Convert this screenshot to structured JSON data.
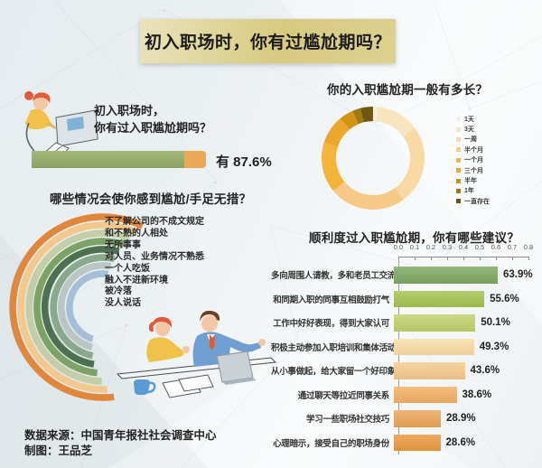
{
  "banner": {
    "title": "初入职场时，你有过尴尬期吗？"
  },
  "intro": {
    "question_line1": "初入职场时，",
    "question_line2": "你有过入职尴尬期吗？",
    "answer_text": "有 87.6%",
    "answer_value_pct": 87.6,
    "bar_fill_color": "#93ab64",
    "bar_rest_color": "#eaa757"
  },
  "footer": {
    "source": "数据来源：中国青年报社社会调查中心",
    "credit": "制图：王品芝"
  },
  "chart_data": [
    {
      "id": "awkward_situations",
      "type": "radial-bar",
      "title": "哪些情况会使你感到尴尬/手足无措？",
      "categories": [
        "不了解公司的不成文规定",
        "和不熟的人相处",
        "无所事事",
        "对人员、业务情况不熟悉",
        "一个人吃饭",
        "融入不进新环境",
        "被冷落",
        "没人说话"
      ],
      "colors": [
        "#e0873c",
        "#f2c88d",
        "#c3cea6",
        "#7ca266",
        "#4e7150",
        "#8aa88c",
        "#b9c6c4",
        "#a5bfd8"
      ],
      "sweep_deg": [
        187,
        183,
        179,
        175,
        171,
        168,
        165,
        162
      ],
      "start_deg": [
        -26,
        -23.5,
        -21,
        -18.5,
        -16,
        -13.5,
        -11,
        -8.5
      ]
    },
    {
      "id": "duration",
      "type": "pie",
      "title": "你的入职尴尬期一般有多长？",
      "categories": [
        "1天",
        "3天",
        "一周",
        "半个月",
        "一个月",
        "三个月",
        "半年",
        "1年",
        "一直存在"
      ],
      "values": [
        1.3,
        13.7,
        25,
        24,
        16,
        9,
        4.5,
        2.5,
        4
      ],
      "colors": [
        "#f5efdd",
        "#f9e4c0",
        "#f8d9a6",
        "#f6c987",
        "#f4b43a",
        "#e9a72e",
        "#d3920f",
        "#9e7a10",
        "#6e5614"
      ],
      "legend_position": "right"
    },
    {
      "id": "suggestions",
      "type": "bar",
      "title": "顺利度过入职尴尬期，你有哪些建议？",
      "categories": [
        "多向周围人请教，多和老员工交流",
        "和同期入职的同事互相鼓励打气",
        "工作中好好表现，得到大家认可",
        "积极主动参加入职培训和集体活动",
        "从小事做起，给大家留一个好印象",
        "通过聊天等拉近同事关系",
        "学习一些职场社交技巧",
        "心理暗示，接受自己的职场身份"
      ],
      "values": [
        63.9,
        55.6,
        50.1,
        49.3,
        43.6,
        38.6,
        28.9,
        28.6
      ],
      "value_labels": [
        "63.9%",
        "55.6%",
        "50.1%",
        "49.3%",
        "43.6%",
        "38.6%",
        "28.9%",
        "28.6%"
      ],
      "colors": [
        "#7da75f",
        "#a4c24f",
        "#bfd06b",
        "#f8dca4",
        "#f4c98b",
        "#f2af62",
        "#eca456",
        "#e9993f"
      ],
      "xticks": [
        "0.0",
        "0.1",
        "0.2",
        "0.3",
        "0.4",
        "0.5",
        "0.6",
        "0.7",
        "0.8"
      ],
      "xlim": [
        0,
        0.8
      ],
      "grid": false
    }
  ]
}
